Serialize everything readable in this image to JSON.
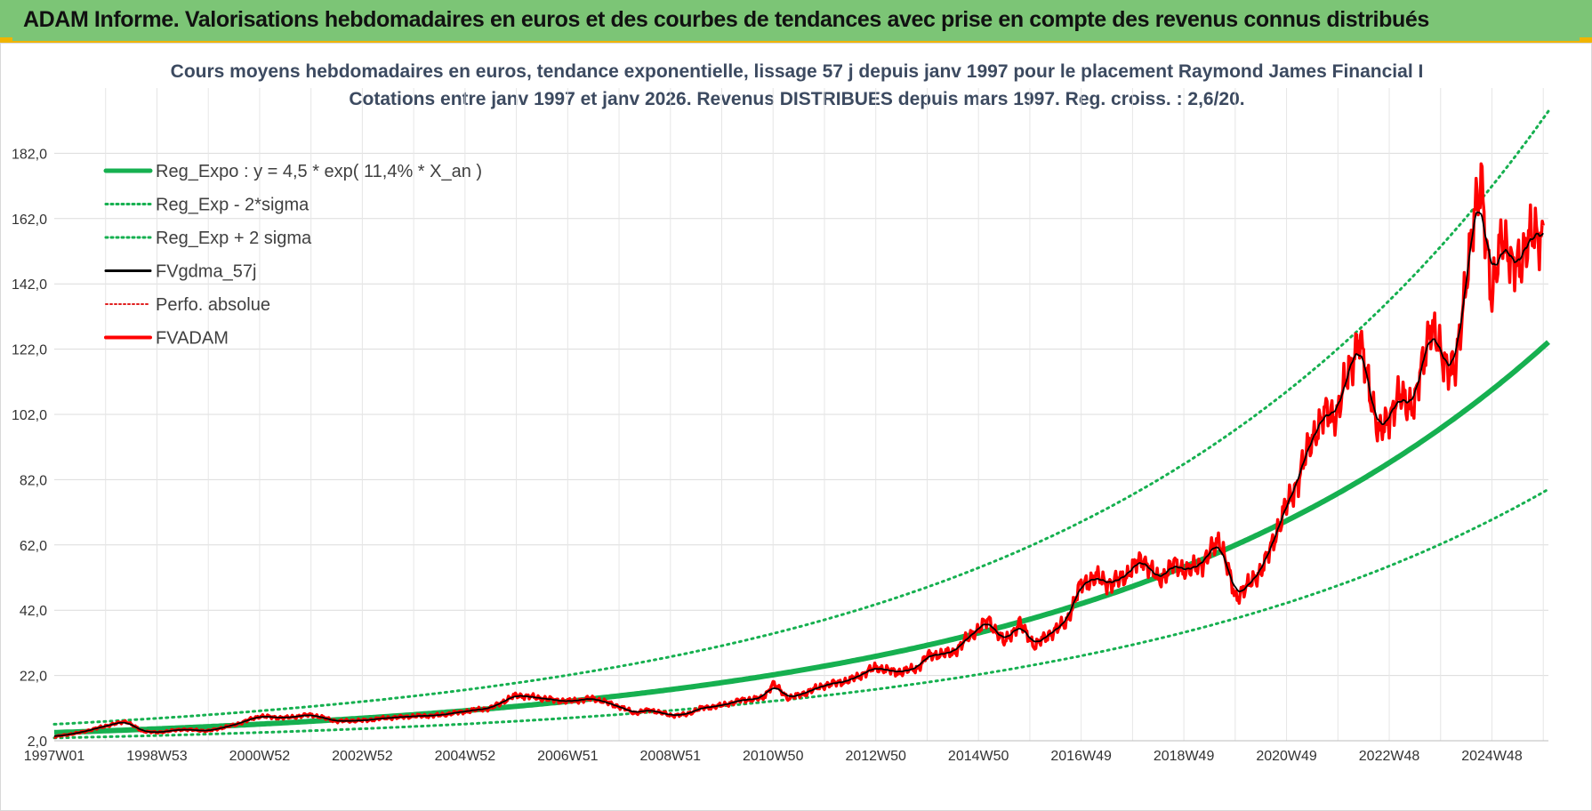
{
  "banner": {
    "title": "ADAM Informe. Valorisations hebdomadaires en euros et des courbes de tendances avec prise en compte des revenus connus distribués"
  },
  "colors": {
    "banner_bg": "#7cc576",
    "trend": "#16b050",
    "band": "#16b050",
    "fvgdma": "#000000",
    "perfo": "#e02020",
    "fvadam": "#ff0000"
  },
  "chart_data": {
    "type": "line",
    "title": [
      "Cours moyens hebdomadaires en euros, tendance exponentielle, lissage 57 j depuis janv 1997 pour le placement Raymond James Financial I",
      "Cotations entre janv 1997 et janv 2026. Revenus DISTRIBUES depuis mars 1997.  Reg. croiss. : 2,6/20."
    ],
    "xlabel": "",
    "ylabel": "",
    "ylim": [
      2,
      202
    ],
    "yticks": [
      "2,0",
      "22,0",
      "42,0",
      "62,0",
      "82,0",
      "102,0",
      "122,0",
      "142,0",
      "162,0",
      "182,0"
    ],
    "yticks_values": [
      2,
      22,
      42,
      62,
      82,
      102,
      122,
      142,
      162,
      182
    ],
    "xlim": [
      1997.0,
      2026.1
    ],
    "xticks": [
      "1997W01",
      "1998W53",
      "2000W52",
      "2002W52",
      "2004W52",
      "2006W51",
      "2008W51",
      "2010W50",
      "2012W50",
      "2014W50",
      "2016W49",
      "2018W49",
      "2020W49",
      "2022W48",
      "2024W48"
    ],
    "xticks_values": [
      1997.0,
      1999.0,
      2001.0,
      2003.0,
      2005.0,
      2007.0,
      2009.0,
      2011.0,
      2013.0,
      2015.0,
      2017.0,
      2019.0,
      2021.0,
      2023.0,
      2025.0
    ],
    "grid": true,
    "legend_position": "top-left",
    "regression": {
      "name": "Reg_Expo : y = 4,5 * exp( 11,4% *  X_an )",
      "a": 4.5,
      "rate": 0.114,
      "sigma_factor": 1.57
    },
    "series": [
      {
        "name": "Reg_Expo : y = 4,5 * exp( 11,4% *  X_an )",
        "style": "solid-thick",
        "color": "#16b050"
      },
      {
        "name": "Reg_Exp - 2*sigma",
        "style": "dotted",
        "color": "#16b050"
      },
      {
        "name": "Reg_Exp + 2 sigma",
        "style": "dotted",
        "color": "#16b050"
      },
      {
        "name": "FVgdma_57j",
        "style": "solid-thin",
        "color": "#000000"
      },
      {
        "name": "Perfo. absolue",
        "style": "dotted",
        "color": "#e02020"
      },
      {
        "name": "FVADAM",
        "style": "solid-thick",
        "color": "#ff0000"
      }
    ],
    "fvadam_points": {
      "x": [
        1997.0,
        1997.5,
        1998.0,
        1998.4,
        1998.7,
        1999.0,
        1999.5,
        2000.0,
        2000.5,
        2001.0,
        2001.5,
        2002.0,
        2002.5,
        2003.0,
        2003.5,
        2004.0,
        2004.5,
        2005.0,
        2005.5,
        2006.0,
        2006.5,
        2007.0,
        2007.5,
        2008.0,
        2008.3,
        2008.6,
        2009.0,
        2009.3,
        2009.6,
        2010.0,
        2010.4,
        2010.8,
        2011.0,
        2011.3,
        2011.6,
        2012.0,
        2012.5,
        2013.0,
        2013.4,
        2013.8,
        2014.0,
        2014.5,
        2014.9,
        2015.2,
        2015.5,
        2015.8,
        2016.1,
        2016.4,
        2016.7,
        2017.0,
        2017.3,
        2017.6,
        2017.9,
        2018.2,
        2018.5,
        2018.8,
        2019.1,
        2019.4,
        2019.7,
        2020.0,
        2020.1,
        2020.3,
        2020.6,
        2020.9,
        2021.2,
        2021.5,
        2021.8,
        2022.0,
        2022.2,
        2022.4,
        2022.6,
        2022.8,
        2023.0,
        2023.2,
        2023.5,
        2023.8,
        2024.0,
        2024.3,
        2024.5,
        2024.8,
        2025.0,
        2025.2,
        2025.4,
        2025.7,
        2026.0
      ],
      "y": [
        3.2,
        4.5,
        6.5,
        8.0,
        5.0,
        4.5,
        5.5,
        5.0,
        6.8,
        9.5,
        9.0,
        10.0,
        8.0,
        8.2,
        9.0,
        9.5,
        9.8,
        11.0,
        12.0,
        16.0,
        15.0,
        14.0,
        15.0,
        12.5,
        10.5,
        11.5,
        9.8,
        10.0,
        12.0,
        12.8,
        14.5,
        15.0,
        19.5,
        15.0,
        16.5,
        19.0,
        20.5,
        24.5,
        23.0,
        24.0,
        28.0,
        29.0,
        35.0,
        39.0,
        32.0,
        38.0,
        31.0,
        35.0,
        38.0,
        50.0,
        52.0,
        50.0,
        53.0,
        58.0,
        51.0,
        56.0,
        54.0,
        57.0,
        64.0,
        46.0,
        47.5,
        50.0,
        57.0,
        70.0,
        81.0,
        95.0,
        103.0,
        102.0,
        115.0,
        125.0,
        112.0,
        95.0,
        102.0,
        107.0,
        105.0,
        130.0,
        120.0,
        115.0,
        145.0,
        175.0,
        135.0,
        160.0,
        145.0,
        155.0,
        158.0
      ]
    }
  }
}
